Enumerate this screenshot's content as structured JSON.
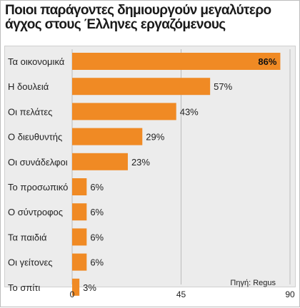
{
  "title": "Ποιοι παράγοντες δημιουργούν μεγαλύτερο άγχος στους Έλληνες εργαζόμενους",
  "source": "Πηγή: Regus",
  "colors": {
    "bar": "#f08a24",
    "label_text": "#222222",
    "highlight_text": "#111111"
  },
  "chart_data": {
    "type": "bar",
    "orientation": "horizontal",
    "title": "Ποιοι παράγοντες δημιουργούν μεγαλύτερο άγχος στους Έλληνες εργαζόμενους",
    "categories": [
      "Τα οικονομικά",
      "Η δουλειά",
      "Οι πελάτες",
      "Ο διευθυντής",
      "Οι συνάδελφοι",
      "Το προσωπικό",
      "Ο σύντροφος",
      "Τα παιδιά",
      "Οι γείτονες",
      "Το σπίτι"
    ],
    "values": [
      86,
      57,
      43,
      29,
      23,
      6,
      6,
      6,
      6,
      3
    ],
    "value_labels": [
      "86%",
      "57%",
      "43%",
      "29%",
      "23%",
      "6%",
      "6%",
      "6%",
      "6%",
      "3%"
    ],
    "xlim": [
      0,
      90
    ],
    "xticks": [
      "0",
      "45",
      "90"
    ],
    "xlabel": "",
    "ylabel": "",
    "grid": true,
    "legend": "none",
    "highlight_index": 0
  }
}
